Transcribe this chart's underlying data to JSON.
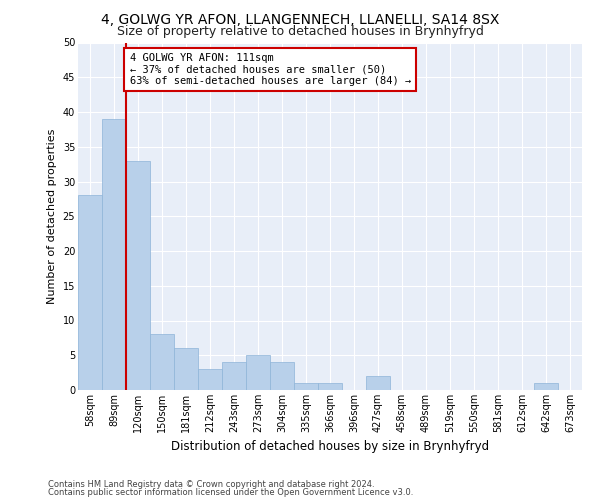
{
  "title1": "4, GOLWG YR AFON, LLANGENNECH, LLANELLI, SA14 8SX",
  "title2": "Size of property relative to detached houses in Brynhyfryd",
  "xlabel": "Distribution of detached houses by size in Brynhyfryd",
  "ylabel": "Number of detached properties",
  "categories": [
    "58sqm",
    "89sqm",
    "120sqm",
    "150sqm",
    "181sqm",
    "212sqm",
    "243sqm",
    "273sqm",
    "304sqm",
    "335sqm",
    "366sqm",
    "396sqm",
    "427sqm",
    "458sqm",
    "489sqm",
    "519sqm",
    "550sqm",
    "581sqm",
    "612sqm",
    "642sqm",
    "673sqm"
  ],
  "values": [
    28,
    39,
    33,
    8,
    6,
    3,
    4,
    5,
    4,
    1,
    1,
    0,
    2,
    0,
    0,
    0,
    0,
    0,
    0,
    1,
    0
  ],
  "bar_color": "#b8d0ea",
  "bar_edge_color": "#8eb4d8",
  "vline_color": "#cc0000",
  "annotation_line1": "4 GOLWG YR AFON: 111sqm",
  "annotation_line2": "← 37% of detached houses are smaller (50)",
  "annotation_line3": "63% of semi-detached houses are larger (84) →",
  "annotation_box_color": "#ffffff",
  "annotation_box_edge": "#cc0000",
  "ylim": [
    0,
    50
  ],
  "yticks": [
    0,
    5,
    10,
    15,
    20,
    25,
    30,
    35,
    40,
    45,
    50
  ],
  "footer1": "Contains HM Land Registry data © Crown copyright and database right 2024.",
  "footer2": "Contains public sector information licensed under the Open Government Licence v3.0.",
  "fig_bg_color": "#ffffff",
  "ax_bg_color": "#e8eef8",
  "grid_color": "#ffffff",
  "title1_fontsize": 10,
  "title2_fontsize": 9,
  "xlabel_fontsize": 8.5,
  "ylabel_fontsize": 8,
  "tick_fontsize": 7,
  "footer_fontsize": 6,
  "annotation_fontsize": 7.5
}
